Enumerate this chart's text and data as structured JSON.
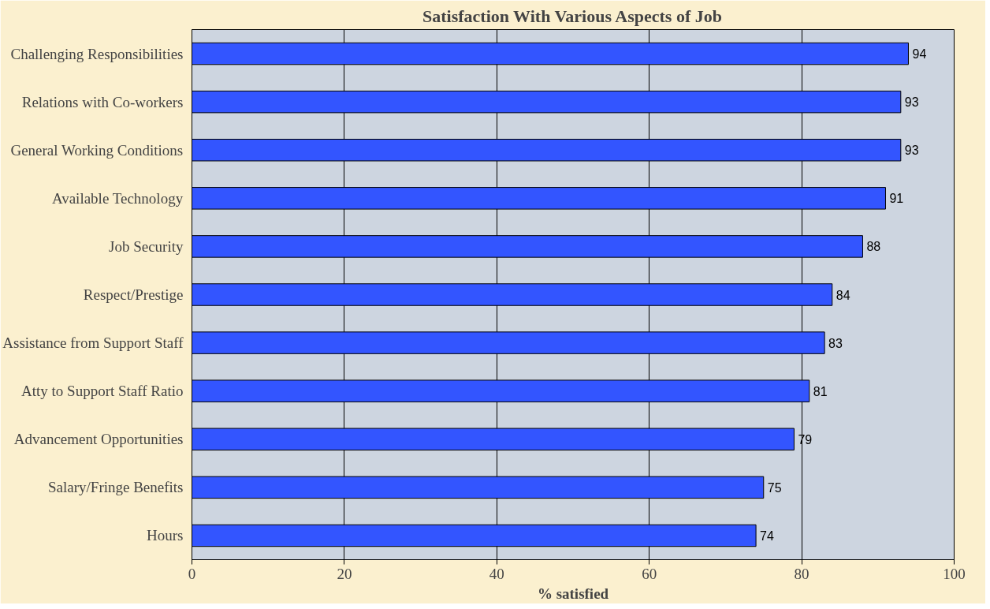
{
  "chart_data": {
    "type": "bar",
    "orientation": "horizontal",
    "title": "Satisfaction With Various Aspects of Job",
    "xlabel": "% satisfied",
    "categories": [
      "Challenging Responsibilities",
      "Relations with Co-workers",
      "General Working Conditions",
      "Available Technology",
      "Job Security",
      "Respect/Prestige",
      "Assistance from Support Staff",
      "Atty to Support Staff Ratio",
      "Advancement Opportunities",
      "Salary/Fringe Benefits",
      "Hours"
    ],
    "values": [
      94,
      93,
      93,
      91,
      88,
      84,
      83,
      81,
      79,
      75,
      74
    ],
    "color": "#3355ff",
    "xlim": [
      0,
      100
    ],
    "xticks": [
      0,
      20,
      40,
      60,
      80,
      100
    ],
    "grid": "x",
    "data_labels": true
  }
}
